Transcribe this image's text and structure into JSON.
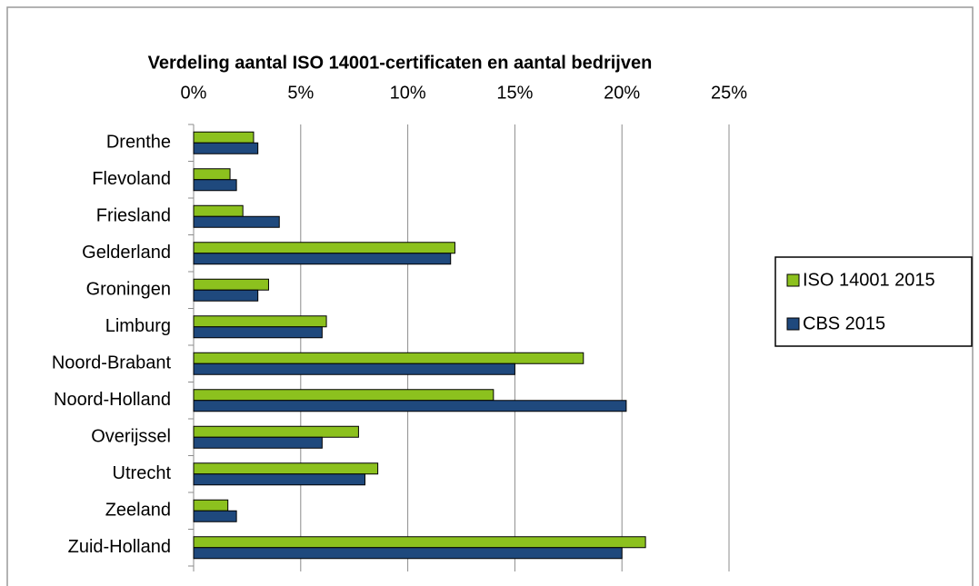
{
  "chart_data": {
    "type": "bar",
    "orientation": "horizontal",
    "title": "Verdeling aantal ISO 14001-certificaten en  aantal bedrijven",
    "categories": [
      "Drenthe",
      "Flevoland",
      "Friesland",
      "Gelderland",
      "Groningen",
      "Limburg",
      "Noord-Brabant",
      "Noord-Holland",
      "Overijssel",
      "Utrecht",
      "Zeeland",
      "Zuid-Holland"
    ],
    "series": [
      {
        "name": "ISO 14001 2015",
        "color": "#8cc11e",
        "values": [
          2.8,
          1.7,
          2.3,
          12.2,
          3.5,
          6.2,
          18.2,
          14.0,
          7.7,
          8.6,
          1.6,
          21.1
        ]
      },
      {
        "name": "CBS 2015",
        "color": "#1f497d",
        "values": [
          3.0,
          2.0,
          4.0,
          12.0,
          3.0,
          6.0,
          15.0,
          20.2,
          6.0,
          8.0,
          2.0,
          20.0
        ]
      }
    ],
    "xlim": [
      0,
      25
    ],
    "xticks": [
      {
        "value": 0,
        "label": "0%"
      },
      {
        "value": 5,
        "label": "5%"
      },
      {
        "value": 10,
        "label": "10%"
      },
      {
        "value": 15,
        "label": "15%"
      },
      {
        "value": 20,
        "label": "20%"
      },
      {
        "value": 25,
        "label": "25%"
      }
    ],
    "grid": true,
    "legend": "right"
  }
}
